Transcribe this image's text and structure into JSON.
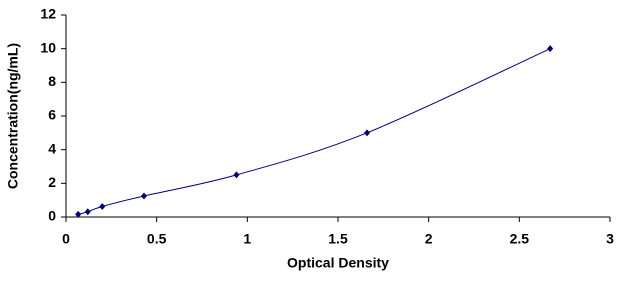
{
  "chart_data": {
    "type": "scatter",
    "x_label": "Optical Density",
    "y_label": "Concentration(ng/mL)",
    "x": [
      0.067,
      0.12,
      0.2,
      0.43,
      0.94,
      1.66,
      2.67
    ],
    "values": [
      0.156,
      0.312,
      0.625,
      1.25,
      2.5,
      5,
      10
    ],
    "color": "#000080",
    "smooth_line": true,
    "xlim": [
      0,
      3
    ],
    "xticks": [
      0,
      0.5,
      1,
      1.5,
      2,
      2.5,
      3
    ],
    "ylim": [
      0,
      12
    ],
    "yticks": [
      0,
      2,
      4,
      6,
      8,
      10,
      12
    ],
    "grid": false
  }
}
